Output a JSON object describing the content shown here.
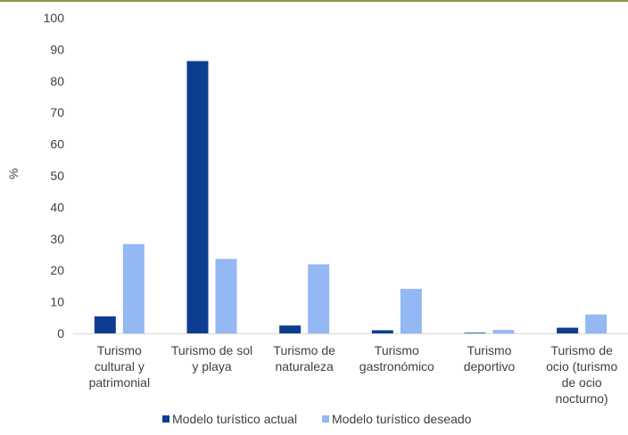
{
  "chart_data": {
    "type": "bar",
    "ylabel": "%",
    "xlabel": "",
    "ylim": [
      0,
      100
    ],
    "yticks": [
      0,
      10,
      20,
      30,
      40,
      50,
      60,
      70,
      80,
      90,
      100
    ],
    "grid": false,
    "legend_position": "bottom",
    "categories": [
      [
        "Turismo",
        "cultural y",
        "patrimonial"
      ],
      [
        "Turismo de sol",
        "y playa"
      ],
      [
        "Turismo de",
        "naturaleza"
      ],
      [
        "Turismo",
        "gastronómico"
      ],
      [
        "Turismo",
        "deportivo"
      ],
      [
        "Turismo de",
        "ocio (turismo",
        "de ocio",
        "nocturno)"
      ]
    ],
    "series": [
      {
        "name": "Modelo turístico actual",
        "color": "#0d3d91",
        "values": [
          5.4,
          86.3,
          2.5,
          1.0,
          0.2,
          1.8
        ]
      },
      {
        "name": "Modelo turístico deseado",
        "color": "#94b8f4",
        "values": [
          28.3,
          23.6,
          21.9,
          14.1,
          1.1,
          6.0
        ]
      }
    ]
  }
}
